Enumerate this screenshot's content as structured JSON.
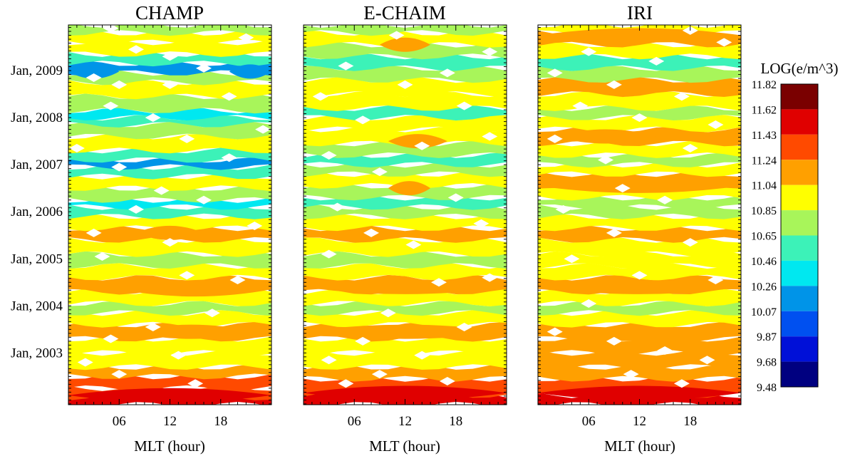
{
  "chart_data": {
    "type": "heatmap",
    "colorbar_title": "LOG(e/m^3)",
    "colorbar_levels": [
      "11.82",
      "11.62",
      "11.43",
      "11.24",
      "11.04",
      "10.85",
      "10.65",
      "10.46",
      "10.26",
      "10.07",
      "9.87",
      "9.68",
      "9.48"
    ],
    "colorbar_colors": [
      "#7a0000",
      "#e00000",
      "#ff4a00",
      "#ffa000",
      "#ffff00",
      "#a8f55a",
      "#3cf2b8",
      "#00e8f0",
      "#0094e8",
      "#0050f0",
      "#0010d8",
      "#000080"
    ],
    "xlabel": "MLT (hour)",
    "xticks": [
      {
        "value": 6,
        "label": "06"
      },
      {
        "value": 12,
        "label": "12"
      },
      {
        "value": 18,
        "label": "18"
      }
    ],
    "xlim": [
      0,
      24
    ],
    "yticks": [
      {
        "value": 2003.0,
        "label": "Jan, 2003"
      },
      {
        "value": 2004.0,
        "label": "Jan, 2004"
      },
      {
        "value": 2005.0,
        "label": "Jan, 2005"
      },
      {
        "value": 2006.0,
        "label": "Jan, 2006"
      },
      {
        "value": 2007.0,
        "label": "Jan, 2007"
      },
      {
        "value": 2008.0,
        "label": "Jan, 2008"
      },
      {
        "value": 2009.0,
        "label": "Jan, 2009"
      }
    ],
    "ylim": [
      2001.9,
      2009.97
    ],
    "panels": [
      {
        "title": "CHAMP",
        "bands": [
          [
            2001.9,
            2002.05,
            11.45
          ],
          [
            2002.05,
            2002.25,
            11.3
          ],
          [
            2002.25,
            2002.5,
            11.28
          ],
          [
            2002.5,
            2002.7,
            11.05
          ],
          [
            2002.7,
            2003.0,
            10.9
          ],
          [
            2003.0,
            2003.3,
            10.95
          ],
          [
            2003.3,
            2003.6,
            11.1
          ],
          [
            2003.6,
            2003.85,
            10.95
          ],
          [
            2003.85,
            2004.05,
            10.7
          ],
          [
            2004.05,
            2004.3,
            10.9
          ],
          [
            2004.3,
            2004.6,
            11.1
          ],
          [
            2004.6,
            2004.85,
            10.95
          ],
          [
            2004.85,
            2005.1,
            10.75
          ],
          [
            2005.1,
            2005.4,
            10.95
          ],
          [
            2005.4,
            2005.65,
            11.1
          ],
          [
            2005.65,
            2005.9,
            10.9
          ],
          [
            2005.9,
            2006.1,
            10.6
          ],
          [
            2006.1,
            2006.25,
            10.45
          ],
          [
            2006.25,
            2006.5,
            10.75
          ],
          [
            2006.5,
            2006.75,
            10.95
          ],
          [
            2006.75,
            2006.95,
            10.6
          ],
          [
            2006.95,
            2007.1,
            10.2
          ],
          [
            2007.1,
            2007.3,
            10.6
          ],
          [
            2007.3,
            2007.6,
            10.9
          ],
          [
            2007.6,
            2007.85,
            10.8
          ],
          [
            2007.85,
            2008.0,
            10.6
          ],
          [
            2008.0,
            2008.15,
            10.3
          ],
          [
            2008.15,
            2008.45,
            10.75
          ],
          [
            2008.45,
            2008.75,
            10.95
          ],
          [
            2008.75,
            2008.95,
            10.7
          ],
          [
            2008.95,
            2009.15,
            10.15
          ],
          [
            2009.15,
            2009.35,
            10.55
          ],
          [
            2009.35,
            2009.6,
            10.85
          ],
          [
            2009.6,
            2009.8,
            11.0
          ],
          [
            2009.8,
            2009.97,
            10.7
          ]
        ],
        "patches": [
          [
            2004.35,
            6,
            24,
            11.15
          ],
          [
            2003.45,
            7,
            22,
            11.15
          ],
          [
            2005.55,
            8,
            16,
            11.15
          ],
          [
            2002.1,
            0,
            24,
            11.45
          ],
          [
            2008.98,
            0,
            6,
            10.1
          ],
          [
            2008.98,
            19,
            24,
            10.1
          ]
        ],
        "holes": [
          [
            2002.35,
            15
          ],
          [
            2002.55,
            6
          ],
          [
            2002.8,
            2
          ],
          [
            2002.95,
            13
          ],
          [
            2003.3,
            5
          ],
          [
            2003.55,
            10
          ],
          [
            2003.85,
            17
          ],
          [
            2004.55,
            20
          ],
          [
            2004.65,
            14
          ],
          [
            2005.05,
            4
          ],
          [
            2005.35,
            12
          ],
          [
            2005.55,
            3
          ],
          [
            2005.7,
            22
          ],
          [
            2006.05,
            8
          ],
          [
            2006.25,
            16
          ],
          [
            2006.45,
            11
          ],
          [
            2006.95,
            6
          ],
          [
            2007.15,
            19
          ],
          [
            2007.35,
            1
          ],
          [
            2007.55,
            14
          ],
          [
            2007.75,
            23
          ],
          [
            2008.0,
            10
          ],
          [
            2008.25,
            5
          ],
          [
            2008.45,
            19
          ],
          [
            2008.7,
            12
          ],
          [
            2008.85,
            3
          ],
          [
            2009.05,
            16
          ],
          [
            2009.45,
            8
          ],
          [
            2009.7,
            21
          ],
          [
            2009.9,
            5
          ],
          [
            2008.7,
            6
          ],
          [
            2009.3,
            12
          ]
        ]
      },
      {
        "title": "E-CHAIM",
        "bands": [
          [
            2001.9,
            2002.1,
            11.45
          ],
          [
            2002.1,
            2002.45,
            11.35
          ],
          [
            2002.45,
            2002.7,
            11.1
          ],
          [
            2002.7,
            2003.0,
            10.95
          ],
          [
            2003.0,
            2003.3,
            11.0
          ],
          [
            2003.3,
            2003.6,
            11.15
          ],
          [
            2003.6,
            2003.85,
            11.0
          ],
          [
            2003.85,
            2004.05,
            10.75
          ],
          [
            2004.05,
            2004.3,
            10.95
          ],
          [
            2004.3,
            2004.6,
            11.15
          ],
          [
            2004.6,
            2004.85,
            11.0
          ],
          [
            2004.85,
            2005.1,
            10.8
          ],
          [
            2005.1,
            2005.4,
            11.0
          ],
          [
            2005.4,
            2005.65,
            11.1
          ],
          [
            2005.65,
            2005.9,
            10.95
          ],
          [
            2005.9,
            2006.1,
            10.7
          ],
          [
            2006.1,
            2006.3,
            10.55
          ],
          [
            2006.3,
            2006.55,
            10.8
          ],
          [
            2006.55,
            2006.8,
            10.95
          ],
          [
            2006.8,
            2007.0,
            10.7
          ],
          [
            2007.0,
            2007.2,
            10.55
          ],
          [
            2007.2,
            2007.45,
            10.8
          ],
          [
            2007.45,
            2007.75,
            10.95
          ],
          [
            2007.75,
            2008.0,
            10.85
          ],
          [
            2008.0,
            2008.2,
            10.6
          ],
          [
            2008.2,
            2008.5,
            10.85
          ],
          [
            2008.5,
            2008.8,
            11.0
          ],
          [
            2008.8,
            2009.05,
            10.7
          ],
          [
            2009.05,
            2009.3,
            10.55
          ],
          [
            2009.3,
            2009.55,
            10.8
          ],
          [
            2009.55,
            2009.8,
            11.0
          ],
          [
            2009.8,
            2009.97,
            10.75
          ]
        ],
        "patches": [
          [
            2006.5,
            10,
            15,
            11.15
          ],
          [
            2009.55,
            9,
            15,
            11.15
          ],
          [
            2007.5,
            10,
            17,
            11.15
          ],
          [
            2002.15,
            0,
            24,
            11.45
          ],
          [
            2003.45,
            0,
            24,
            11.15
          ],
          [
            2004.4,
            0,
            24,
            11.15
          ]
        ],
        "holes": [
          [
            2002.35,
            5
          ],
          [
            2002.55,
            9
          ],
          [
            2002.4,
            17
          ],
          [
            2002.85,
            3
          ],
          [
            2002.95,
            14
          ],
          [
            2003.25,
            7
          ],
          [
            2003.55,
            19
          ],
          [
            2003.85,
            10
          ],
          [
            2004.5,
            16
          ],
          [
            2004.6,
            22
          ],
          [
            2005.1,
            3
          ],
          [
            2005.3,
            13
          ],
          [
            2005.55,
            8
          ],
          [
            2005.75,
            21
          ],
          [
            2006.1,
            4
          ],
          [
            2006.3,
            18
          ],
          [
            2006.85,
            9
          ],
          [
            2007.2,
            3
          ],
          [
            2007.4,
            14
          ],
          [
            2007.6,
            22
          ],
          [
            2007.95,
            7
          ],
          [
            2008.25,
            19
          ],
          [
            2008.45,
            2
          ],
          [
            2008.7,
            12
          ],
          [
            2008.95,
            17
          ],
          [
            2009.1,
            5
          ],
          [
            2009.4,
            22
          ],
          [
            2009.75,
            11
          ]
        ]
      },
      {
        "title": "IRI",
        "bands": [
          [
            2001.9,
            2002.1,
            11.45
          ],
          [
            2002.1,
            2002.45,
            11.35
          ],
          [
            2002.45,
            2002.7,
            11.15
          ],
          [
            2002.7,
            2003.0,
            11.1
          ],
          [
            2003.0,
            2003.3,
            11.15
          ],
          [
            2003.3,
            2003.6,
            11.1
          ],
          [
            2003.6,
            2003.85,
            10.95
          ],
          [
            2003.85,
            2004.05,
            10.75
          ],
          [
            2004.05,
            2004.3,
            10.95
          ],
          [
            2004.3,
            2004.6,
            11.15
          ],
          [
            2004.6,
            2004.85,
            11.0
          ],
          [
            2004.85,
            2005.1,
            10.85
          ],
          [
            2005.1,
            2005.4,
            11.0
          ],
          [
            2005.4,
            2005.65,
            11.15
          ],
          [
            2005.65,
            2005.9,
            11.0
          ],
          [
            2005.9,
            2006.1,
            10.8
          ],
          [
            2006.1,
            2006.3,
            10.65
          ],
          [
            2006.3,
            2006.55,
            10.9
          ],
          [
            2006.55,
            2006.8,
            11.05
          ],
          [
            2006.8,
            2007.0,
            10.85
          ],
          [
            2007.0,
            2007.2,
            10.65
          ],
          [
            2007.2,
            2007.45,
            10.9
          ],
          [
            2007.45,
            2007.75,
            11.05
          ],
          [
            2007.75,
            2008.0,
            10.9
          ],
          [
            2008.0,
            2008.2,
            10.7
          ],
          [
            2008.2,
            2008.5,
            10.9
          ],
          [
            2008.5,
            2008.8,
            11.05
          ],
          [
            2008.8,
            2009.05,
            10.8
          ],
          [
            2009.05,
            2009.3,
            10.55
          ],
          [
            2009.3,
            2009.55,
            10.85
          ],
          [
            2009.55,
            2009.8,
            11.15
          ],
          [
            2009.8,
            2009.97,
            10.9
          ]
        ],
        "patches": [
          [
            2002.15,
            0,
            24,
            11.45
          ],
          [
            2006.55,
            0,
            24,
            11.15
          ],
          [
            2007.6,
            2,
            14,
            11.15
          ],
          [
            2009.75,
            0,
            24,
            11.15
          ],
          [
            2004.4,
            0,
            24,
            11.15
          ],
          [
            2003.4,
            0,
            24,
            11.15
          ]
        ],
        "holes": [
          [
            2002.35,
            17
          ],
          [
            2002.55,
            11
          ],
          [
            2002.85,
            20
          ],
          [
            2003.05,
            15
          ],
          [
            2003.25,
            9
          ],
          [
            2003.45,
            2
          ],
          [
            2004.05,
            6
          ],
          [
            2004.55,
            21
          ],
          [
            2004.65,
            12
          ],
          [
            2005.0,
            4
          ],
          [
            2005.35,
            18
          ],
          [
            2005.55,
            9
          ],
          [
            2006.05,
            3
          ],
          [
            2006.25,
            15
          ],
          [
            2006.5,
            10
          ],
          [
            2007.1,
            8
          ],
          [
            2007.35,
            18
          ],
          [
            2007.55,
            2
          ],
          [
            2007.85,
            21
          ],
          [
            2008.0,
            12
          ],
          [
            2008.25,
            5
          ],
          [
            2008.45,
            17
          ],
          [
            2008.7,
            9
          ],
          [
            2008.95,
            2
          ],
          [
            2009.2,
            14
          ],
          [
            2009.4,
            6
          ],
          [
            2009.6,
            22
          ],
          [
            2009.85,
            18
          ]
        ]
      }
    ]
  }
}
